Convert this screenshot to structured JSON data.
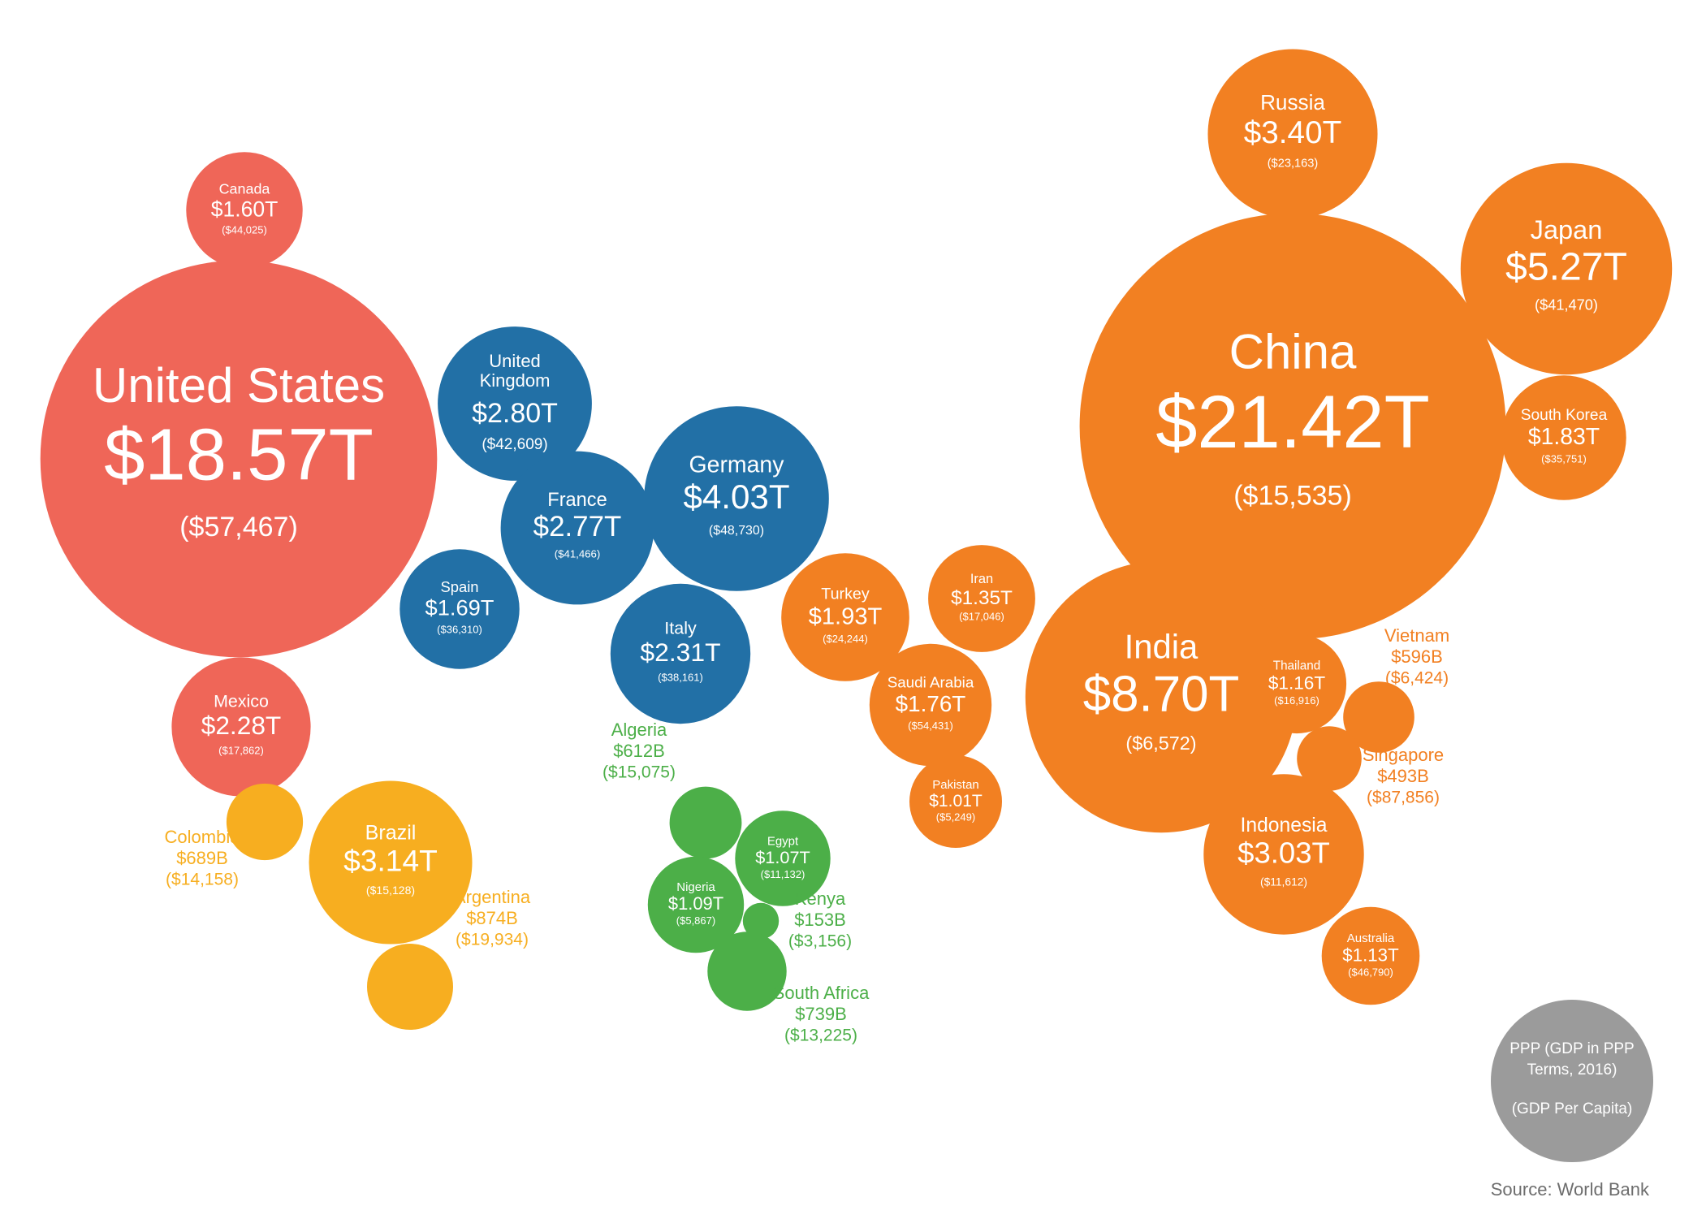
{
  "chart_data": {
    "type": "bubble",
    "title": "",
    "colors": {
      "north_america": "#ef6658",
      "europe": "#2270a6",
      "south_america": "#f7ae20",
      "africa": "#4caf48",
      "asia_oceania": "#f28022",
      "legend": "#9b9b9b",
      "label_on_bubble": "#ffffff"
    },
    "legend": {
      "line1": "PPP (GDP in PPP",
      "line2": "Terms, 2016)",
      "line3": "(GDP Per Capita)"
    },
    "source": "Source: World Bank",
    "countries": [
      {
        "name": "United States",
        "gdp_ppp": "$18.57T",
        "per_capita": "($57,467)",
        "gdp_trillions": 18.57,
        "region": "north_america"
      },
      {
        "name": "Canada",
        "gdp_ppp": "$1.60T",
        "per_capita": "($44,025)",
        "gdp_trillions": 1.6,
        "region": "north_america"
      },
      {
        "name": "Mexico",
        "gdp_ppp": "$2.28T",
        "per_capita": "($17,862)",
        "gdp_trillions": 2.28,
        "region": "north_america"
      },
      {
        "name": "United Kingdom",
        "gdp_ppp": "$2.80T",
        "per_capita": "($42,609)",
        "gdp_trillions": 2.8,
        "region": "europe"
      },
      {
        "name": "France",
        "gdp_ppp": "$2.77T",
        "per_capita": "($41,466)",
        "gdp_trillions": 2.77,
        "region": "europe"
      },
      {
        "name": "Germany",
        "gdp_ppp": "$4.03T",
        "per_capita": "($48,730)",
        "gdp_trillions": 4.03,
        "region": "europe"
      },
      {
        "name": "Spain",
        "gdp_ppp": "$1.69T",
        "per_capita": "($36,310)",
        "gdp_trillions": 1.69,
        "region": "europe"
      },
      {
        "name": "Italy",
        "gdp_ppp": "$2.31T",
        "per_capita": "($38,161)",
        "gdp_trillions": 2.31,
        "region": "europe"
      },
      {
        "name": "Brazil",
        "gdp_ppp": "$3.14T",
        "per_capita": "($15,128)",
        "gdp_trillions": 3.14,
        "region": "south_america"
      },
      {
        "name": "Colombia",
        "gdp_ppp": "$689B",
        "per_capita": "($14,158)",
        "gdp_trillions": 0.689,
        "region": "south_america"
      },
      {
        "name": "Argentina",
        "gdp_ppp": "$874B",
        "per_capita": "($19,934)",
        "gdp_trillions": 0.874,
        "region": "south_america"
      },
      {
        "name": "Algeria",
        "gdp_ppp": "$612B",
        "per_capita": "($15,075)",
        "gdp_trillions": 0.612,
        "region": "africa"
      },
      {
        "name": "Egypt",
        "gdp_ppp": "$1.07T",
        "per_capita": "($11,132)",
        "gdp_trillions": 1.07,
        "region": "africa"
      },
      {
        "name": "Nigeria",
        "gdp_ppp": "$1.09T",
        "per_capita": "($5,867)",
        "gdp_trillions": 1.09,
        "region": "africa"
      },
      {
        "name": "Kenya",
        "gdp_ppp": "$153B",
        "per_capita": "($3,156)",
        "gdp_trillions": 0.153,
        "region": "africa"
      },
      {
        "name": "South Africa",
        "gdp_ppp": "$739B",
        "per_capita": "($13,225)",
        "gdp_trillions": 0.739,
        "region": "africa"
      },
      {
        "name": "Russia",
        "gdp_ppp": "$3.40T",
        "per_capita": "($23,163)",
        "gdp_trillions": 3.4,
        "region": "asia_oceania"
      },
      {
        "name": "China",
        "gdp_ppp": "$21.42T",
        "per_capita": "($15,535)",
        "gdp_trillions": 21.42,
        "region": "asia_oceania"
      },
      {
        "name": "Japan",
        "gdp_ppp": "$5.27T",
        "per_capita": "($41,470)",
        "gdp_trillions": 5.27,
        "region": "asia_oceania"
      },
      {
        "name": "South Korea",
        "gdp_ppp": "$1.83T",
        "per_capita": "($35,751)",
        "gdp_trillions": 1.83,
        "region": "asia_oceania"
      },
      {
        "name": "India",
        "gdp_ppp": "$8.70T",
        "per_capita": "($6,572)",
        "gdp_trillions": 8.7,
        "region": "asia_oceania"
      },
      {
        "name": "Turkey",
        "gdp_ppp": "$1.93T",
        "per_capita": "($24,244)",
        "gdp_trillions": 1.93,
        "region": "asia_oceania"
      },
      {
        "name": "Iran",
        "gdp_ppp": "$1.35T",
        "per_capita": "($17,046)",
        "gdp_trillions": 1.35,
        "region": "asia_oceania"
      },
      {
        "name": "Saudi Arabia",
        "gdp_ppp": "$1.76T",
        "per_capita": "($54,431)",
        "gdp_trillions": 1.76,
        "region": "asia_oceania"
      },
      {
        "name": "Pakistan",
        "gdp_ppp": "$1.01T",
        "per_capita": "($5,249)",
        "gdp_trillions": 1.01,
        "region": "asia_oceania"
      },
      {
        "name": "Thailand",
        "gdp_ppp": "$1.16T",
        "per_capita": "($16,916)",
        "gdp_trillions": 1.16,
        "region": "asia_oceania"
      },
      {
        "name": "Vietnam",
        "gdp_ppp": "$596B",
        "per_capita": "($6,424)",
        "gdp_trillions": 0.596,
        "region": "asia_oceania"
      },
      {
        "name": "Singapore",
        "gdp_ppp": "$493B",
        "per_capita": "($87,856)",
        "gdp_trillions": 0.493,
        "region": "asia_oceania"
      },
      {
        "name": "Indonesia",
        "gdp_ppp": "$3.03T",
        "per_capita": "($11,612)",
        "gdp_trillions": 3.03,
        "region": "asia_oceania"
      },
      {
        "name": "Australia",
        "gdp_ppp": "$1.13T",
        "per_capita": "($46,790)",
        "gdp_trillions": 1.13,
        "region": "asia_oceania"
      }
    ]
  }
}
